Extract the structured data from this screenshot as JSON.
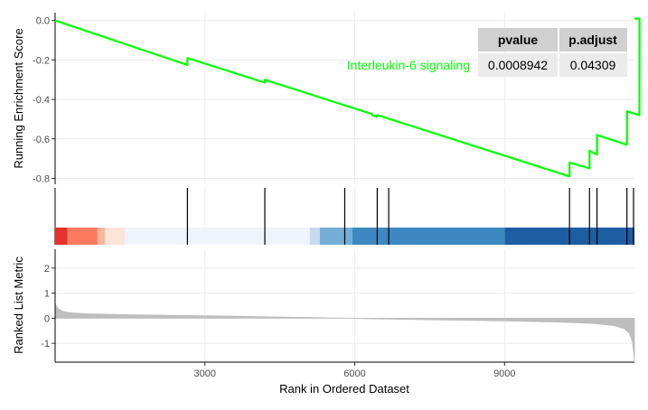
{
  "chart_data": {
    "type": "line",
    "x_range": [
      1,
      11600
    ],
    "x_ticks": [
      3000,
      6000,
      9000
    ],
    "x_tick_labels": [
      "3000",
      "6000",
      "9000"
    ],
    "xlabel": "Rank in Ordered Dataset",
    "colors": {
      "curve": "#00ff00",
      "gray": "#bebebe",
      "hit": "#000000",
      "grid": "#ebebeb"
    },
    "enrichment": {
      "ylabel": "Running Enrichment Score",
      "ylim": [
        -0.83,
        0.04
      ],
      "y_ticks": [
        0.0,
        -0.2,
        -0.4,
        -0.6,
        -0.8
      ],
      "y_tick_labels": [
        "0.0",
        "-0.2",
        "-0.4",
        "-0.6",
        "-0.8"
      ],
      "series": [
        {
          "name": "Interleukin-6 signaling",
          "x": [
            1,
            2650,
            2651,
            4200,
            4201,
            6350,
            6351,
            6450,
            6451,
            6580,
            6581,
            10300,
            10301,
            10700,
            10701,
            10850,
            10851,
            11450,
            11451,
            11700,
            11701,
            11600
          ],
          "y": [
            0.0,
            -0.225,
            -0.19,
            -0.315,
            -0.3,
            -0.474,
            -0.48,
            -0.488,
            -0.48,
            -0.488,
            -0.49,
            -0.79,
            -0.72,
            -0.75,
            -0.66,
            -0.68,
            -0.58,
            -0.63,
            -0.46,
            -0.48,
            0.01,
            0.01
          ]
        }
      ],
      "table": {
        "headers": [
          "pvalue",
          "p.adjust"
        ],
        "values": [
          "0.0008942",
          "0.04309"
        ]
      }
    },
    "hits": [
      2650,
      4200,
      5800,
      6450,
      6680,
      10300,
      10700,
      10850,
      11450,
      11700
    ],
    "color_bar": [
      {
        "from": 0,
        "to": 250,
        "color": "#e6312d"
      },
      {
        "from": 250,
        "to": 850,
        "color": "#fb7a5f"
      },
      {
        "from": 850,
        "to": 1000,
        "color": "#fcb59a"
      },
      {
        "from": 1000,
        "to": 1400,
        "color": "#fde4d8"
      },
      {
        "from": 1400,
        "to": 5100,
        "color": "#eff3fb"
      },
      {
        "from": 5100,
        "to": 5300,
        "color": "#c6dbef"
      },
      {
        "from": 5300,
        "to": 5950,
        "color": "#74aed6"
      },
      {
        "from": 5950,
        "to": 9000,
        "color": "#3d88c2"
      },
      {
        "from": 9000,
        "to": 11600,
        "color": "#1d5ea2"
      }
    ],
    "ranked": {
      "ylabel": "Ranked List Metric",
      "ylim": [
        -1.75,
        2.75
      ],
      "y_ticks": [
        2,
        1,
        0,
        -1
      ],
      "y_tick_labels": [
        "2",
        "1",
        "0",
        "-1"
      ],
      "x": [
        0,
        20,
        60,
        150,
        300,
        600,
        1500,
        3000,
        4500,
        5700,
        6000,
        7500,
        9000,
        10000,
        10800,
        11200,
        11400,
        11500,
        11560,
        11600
      ],
      "y": [
        0.6,
        0.5,
        0.38,
        0.28,
        0.22,
        0.18,
        0.14,
        0.1,
        0.05,
        0.01,
        -0.01,
        -0.06,
        -0.11,
        -0.15,
        -0.21,
        -0.3,
        -0.42,
        -0.6,
        -0.95,
        -1.7
      ]
    }
  }
}
